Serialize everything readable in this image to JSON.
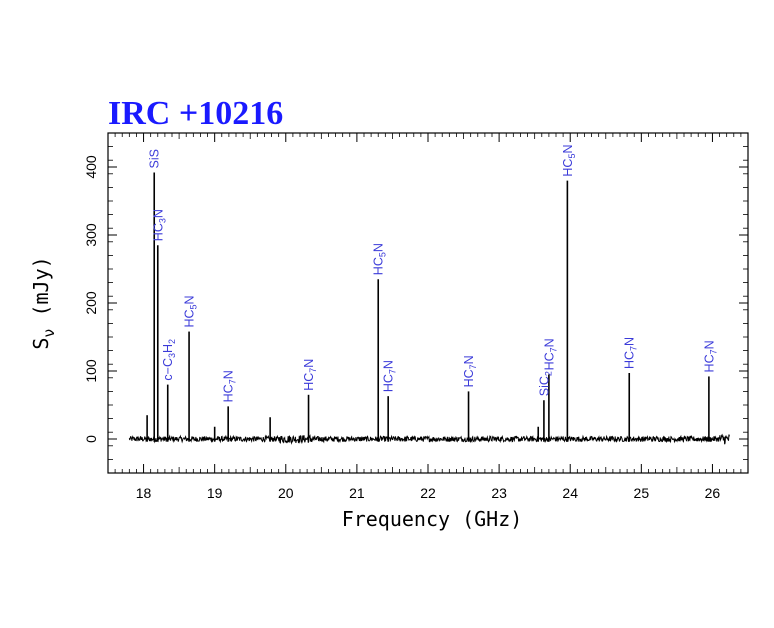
{
  "chart_data": {
    "type": "line",
    "title": "IRC +10216",
    "xlabel": "Frequency (GHz)",
    "ylabel": "S_ν (mJy)",
    "xlim": [
      17.5,
      26.5
    ],
    "ylim": [
      -50,
      450
    ],
    "x_ticks": [
      18,
      19,
      20,
      21,
      22,
      23,
      24,
      25,
      26
    ],
    "y_ticks": [
      0,
      100,
      200,
      300,
      400
    ],
    "grid": false,
    "colors": {
      "title": "#1a1aff",
      "labels": "#3b3bd9",
      "trace": "#000000",
      "frame": "#000000"
    },
    "spectrum_range": [
      17.8,
      26.25
    ],
    "series": [
      {
        "values": [
          {
            "freq": 18.05,
            "peak": 35,
            "label_parts": []
          },
          {
            "freq": 18.15,
            "peak": 392,
            "label_parts": [
              "SiS"
            ]
          },
          {
            "freq": 18.2,
            "peak": 285,
            "label_parts": [
              "HC",
              "3",
              "N"
            ]
          },
          {
            "freq": 18.34,
            "peak": 80,
            "label_parts": [
              "c−C",
              "3",
              "H",
              "2"
            ]
          },
          {
            "freq": 18.64,
            "peak": 158,
            "label_parts": [
              "HC",
              "5",
              "N"
            ]
          },
          {
            "freq": 19.0,
            "peak": 18,
            "label_parts": []
          },
          {
            "freq": 19.19,
            "peak": 48,
            "label_parts": [
              "HC",
              "7",
              "N"
            ]
          },
          {
            "freq": 19.78,
            "peak": 32,
            "label_parts": []
          },
          {
            "freq": 20.32,
            "peak": 65,
            "label_parts": [
              "HC",
              "7",
              "N"
            ]
          },
          {
            "freq": 21.3,
            "peak": 235,
            "label_parts": [
              "HC",
              "5",
              "N"
            ]
          },
          {
            "freq": 21.44,
            "peak": 63,
            "label_parts": [
              "HC",
              "7",
              "N"
            ]
          },
          {
            "freq": 22.57,
            "peak": 70,
            "label_parts": [
              "HC",
              "7",
              "N"
            ]
          },
          {
            "freq": 23.55,
            "peak": 18,
            "label_parts": []
          },
          {
            "freq": 23.63,
            "peak": 57,
            "label_parts": [
              "SiC",
              "2"
            ]
          },
          {
            "freq": 23.7,
            "peak": 95,
            "label_parts": [
              "HC",
              "7",
              "N"
            ]
          },
          {
            "freq": 23.96,
            "peak": 380,
            "label_parts": [
              "HC",
              "5",
              "N"
            ]
          },
          {
            "freq": 24.83,
            "peak": 97,
            "label_parts": [
              "HC",
              "7",
              "N"
            ]
          },
          {
            "freq": 25.95,
            "peak": 92,
            "label_parts": [
              "HC",
              "7",
              "N"
            ]
          }
        ]
      }
    ]
  }
}
